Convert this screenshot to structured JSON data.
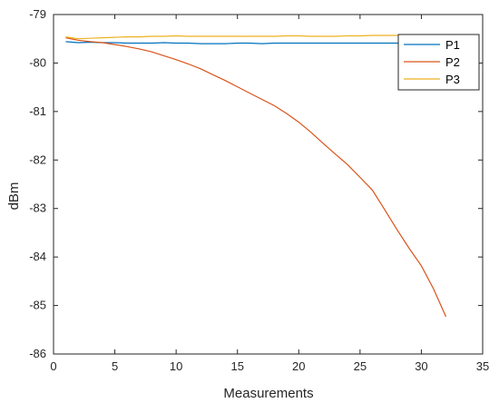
{
  "chart_data": {
    "type": "line",
    "xlabel": "Measurements",
    "ylabel": "dBm",
    "xlim": [
      0,
      35
    ],
    "ylim": [
      -86,
      -79
    ],
    "xticks": [
      0,
      5,
      10,
      15,
      20,
      25,
      30,
      35
    ],
    "yticks": [
      -79,
      -80,
      -81,
      -82,
      -83,
      -84,
      -85,
      -86
    ],
    "grid": false,
    "legend_position": "top-right",
    "x": [
      1,
      2,
      3,
      4,
      5,
      6,
      7,
      8,
      9,
      10,
      11,
      12,
      13,
      14,
      15,
      16,
      17,
      18,
      19,
      20,
      21,
      22,
      23,
      24,
      25,
      26,
      27,
      28,
      29,
      30,
      31,
      32
    ],
    "series": [
      {
        "name": "P1",
        "color": "#0072BD",
        "values": [
          -79.56,
          -79.58,
          -79.57,
          -79.58,
          -79.58,
          -79.59,
          -79.59,
          -79.59,
          -79.58,
          -79.59,
          -79.59,
          -79.6,
          -79.6,
          -79.6,
          -79.59,
          -79.59,
          -79.6,
          -79.59,
          -79.59,
          -79.59,
          -79.59,
          -79.59,
          -79.59,
          -79.59,
          -79.59,
          -79.59,
          -79.59,
          -79.59,
          -79.59,
          -79.59,
          -79.59,
          -79.59
        ]
      },
      {
        "name": "P2",
        "color": "#D95319",
        "values": [
          -79.48,
          -79.53,
          -79.56,
          -79.58,
          -79.62,
          -79.66,
          -79.71,
          -79.77,
          -79.85,
          -79.93,
          -80.02,
          -80.12,
          -80.24,
          -80.36,
          -80.49,
          -80.62,
          -80.75,
          -80.88,
          -81.04,
          -81.22,
          -81.43,
          -81.66,
          -81.88,
          -82.1,
          -82.36,
          -82.62,
          -83.02,
          -83.43,
          -83.82,
          -84.18,
          -84.66,
          -85.23
        ]
      },
      {
        "name": "P3",
        "color": "#EDB120",
        "values": [
          -79.46,
          -79.5,
          -79.49,
          -79.48,
          -79.47,
          -79.46,
          -79.46,
          -79.45,
          -79.45,
          -79.44,
          -79.45,
          -79.45,
          -79.45,
          -79.45,
          -79.45,
          -79.45,
          -79.45,
          -79.45,
          -79.44,
          -79.44,
          -79.45,
          -79.45,
          -79.45,
          -79.44,
          -79.44,
          -79.43,
          -79.43,
          -79.43,
          -79.43,
          -79.43,
          -79.43,
          -79.43
        ]
      }
    ]
  }
}
